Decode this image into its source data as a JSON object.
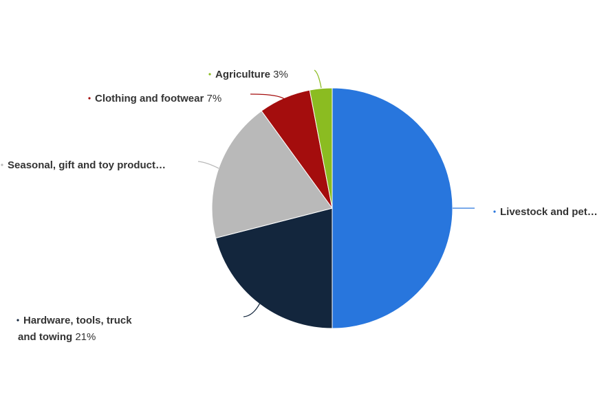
{
  "chart_data": {
    "type": "pie",
    "slices": [
      {
        "name": "Livestock and pet…",
        "pct_label": "",
        "value": 50,
        "color": "#2876dd"
      },
      {
        "name": "Hardware, tools, truck and towing",
        "pct_label": "21%",
        "value": 21,
        "color": "#13263d"
      },
      {
        "name": "Seasonal, gift and toy product…",
        "pct_label": "",
        "value": 19,
        "color": "#b9b9b9"
      },
      {
        "name": "Clothing and footwear",
        "pct_label": "7%",
        "value": 7,
        "color": "#a40d0d"
      },
      {
        "name": "Agriculture",
        "pct_label": "3%",
        "value": 3,
        "color": "#8bbc21"
      }
    ]
  }
}
